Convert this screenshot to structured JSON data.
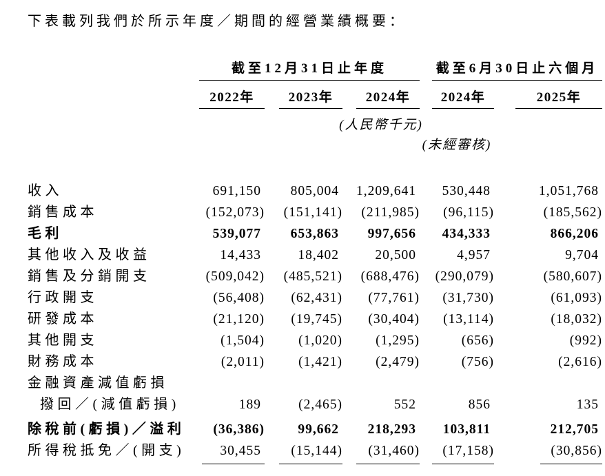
{
  "colors": {
    "background": "#ffffff",
    "text": "#000000",
    "rule": "#000000"
  },
  "intro": "下表載列我們於所示年度／期間的經營業績概要：",
  "table": {
    "col_groups": [
      {
        "label": "截至12月31日止年度",
        "cols": [
          "2022年",
          "2023年",
          "2024年"
        ]
      },
      {
        "label": "截至6月30日止六個月",
        "cols": [
          "2024年",
          "2025年"
        ]
      }
    ],
    "unit_note": "(人民幣千元)",
    "audit_note": "(未經審核)",
    "rows": [
      {
        "label": "收入",
        "values": [
          "691,150",
          "805,004",
          "1,209,641",
          "530,448",
          "1,051,768"
        ]
      },
      {
        "label": "銷售成本",
        "values": [
          "(152,073)",
          "(151,141)",
          "(211,985)",
          "(96,115)",
          "(185,562)"
        ]
      },
      {
        "label": "毛利",
        "bold": true,
        "values": [
          "539,077",
          "653,863",
          "997,656",
          "434,333",
          "866,206"
        ]
      },
      {
        "label": "其他收入及收益",
        "values": [
          "14,433",
          "18,402",
          "20,500",
          "4,957",
          "9,704"
        ]
      },
      {
        "label": "銷售及分銷開支",
        "values": [
          "(509,042)",
          "(485,521)",
          "(688,476)",
          "(290,079)",
          "(580,607)"
        ]
      },
      {
        "label": "行政開支",
        "values": [
          "(56,408)",
          "(62,431)",
          "(77,761)",
          "(31,730)",
          "(61,093)"
        ]
      },
      {
        "label": "研發成本",
        "values": [
          "(21,120)",
          "(19,745)",
          "(30,404)",
          "(13,114)",
          "(18,032)"
        ]
      },
      {
        "label": "其他開支",
        "values": [
          "(1,504)",
          "(1,020)",
          "(1,295)",
          "(656)",
          "(992)"
        ]
      },
      {
        "label": "財務成本",
        "values": [
          "(2,011)",
          "(1,421)",
          "(2,479)",
          "(756)",
          "(2,616)"
        ]
      },
      {
        "label": "金融資產減值虧損",
        "values": [
          "",
          "",
          "",
          "",
          ""
        ]
      },
      {
        "label": "撥回／(減值虧損)",
        "indent": true,
        "values": [
          "189",
          "(2,465)",
          "552",
          "856",
          "135"
        ]
      },
      {
        "label": "除稅前(虧損)／溢利",
        "bold": true,
        "extra_gap": true,
        "values": [
          "(36,386)",
          "99,662",
          "218,293",
          "103,811",
          "212,705"
        ]
      },
      {
        "label": "所得稅抵免／(開支)",
        "values": [
          "30,455",
          "(15,144)",
          "(31,460)",
          "(17,158)",
          "(30,856)"
        ]
      }
    ]
  }
}
